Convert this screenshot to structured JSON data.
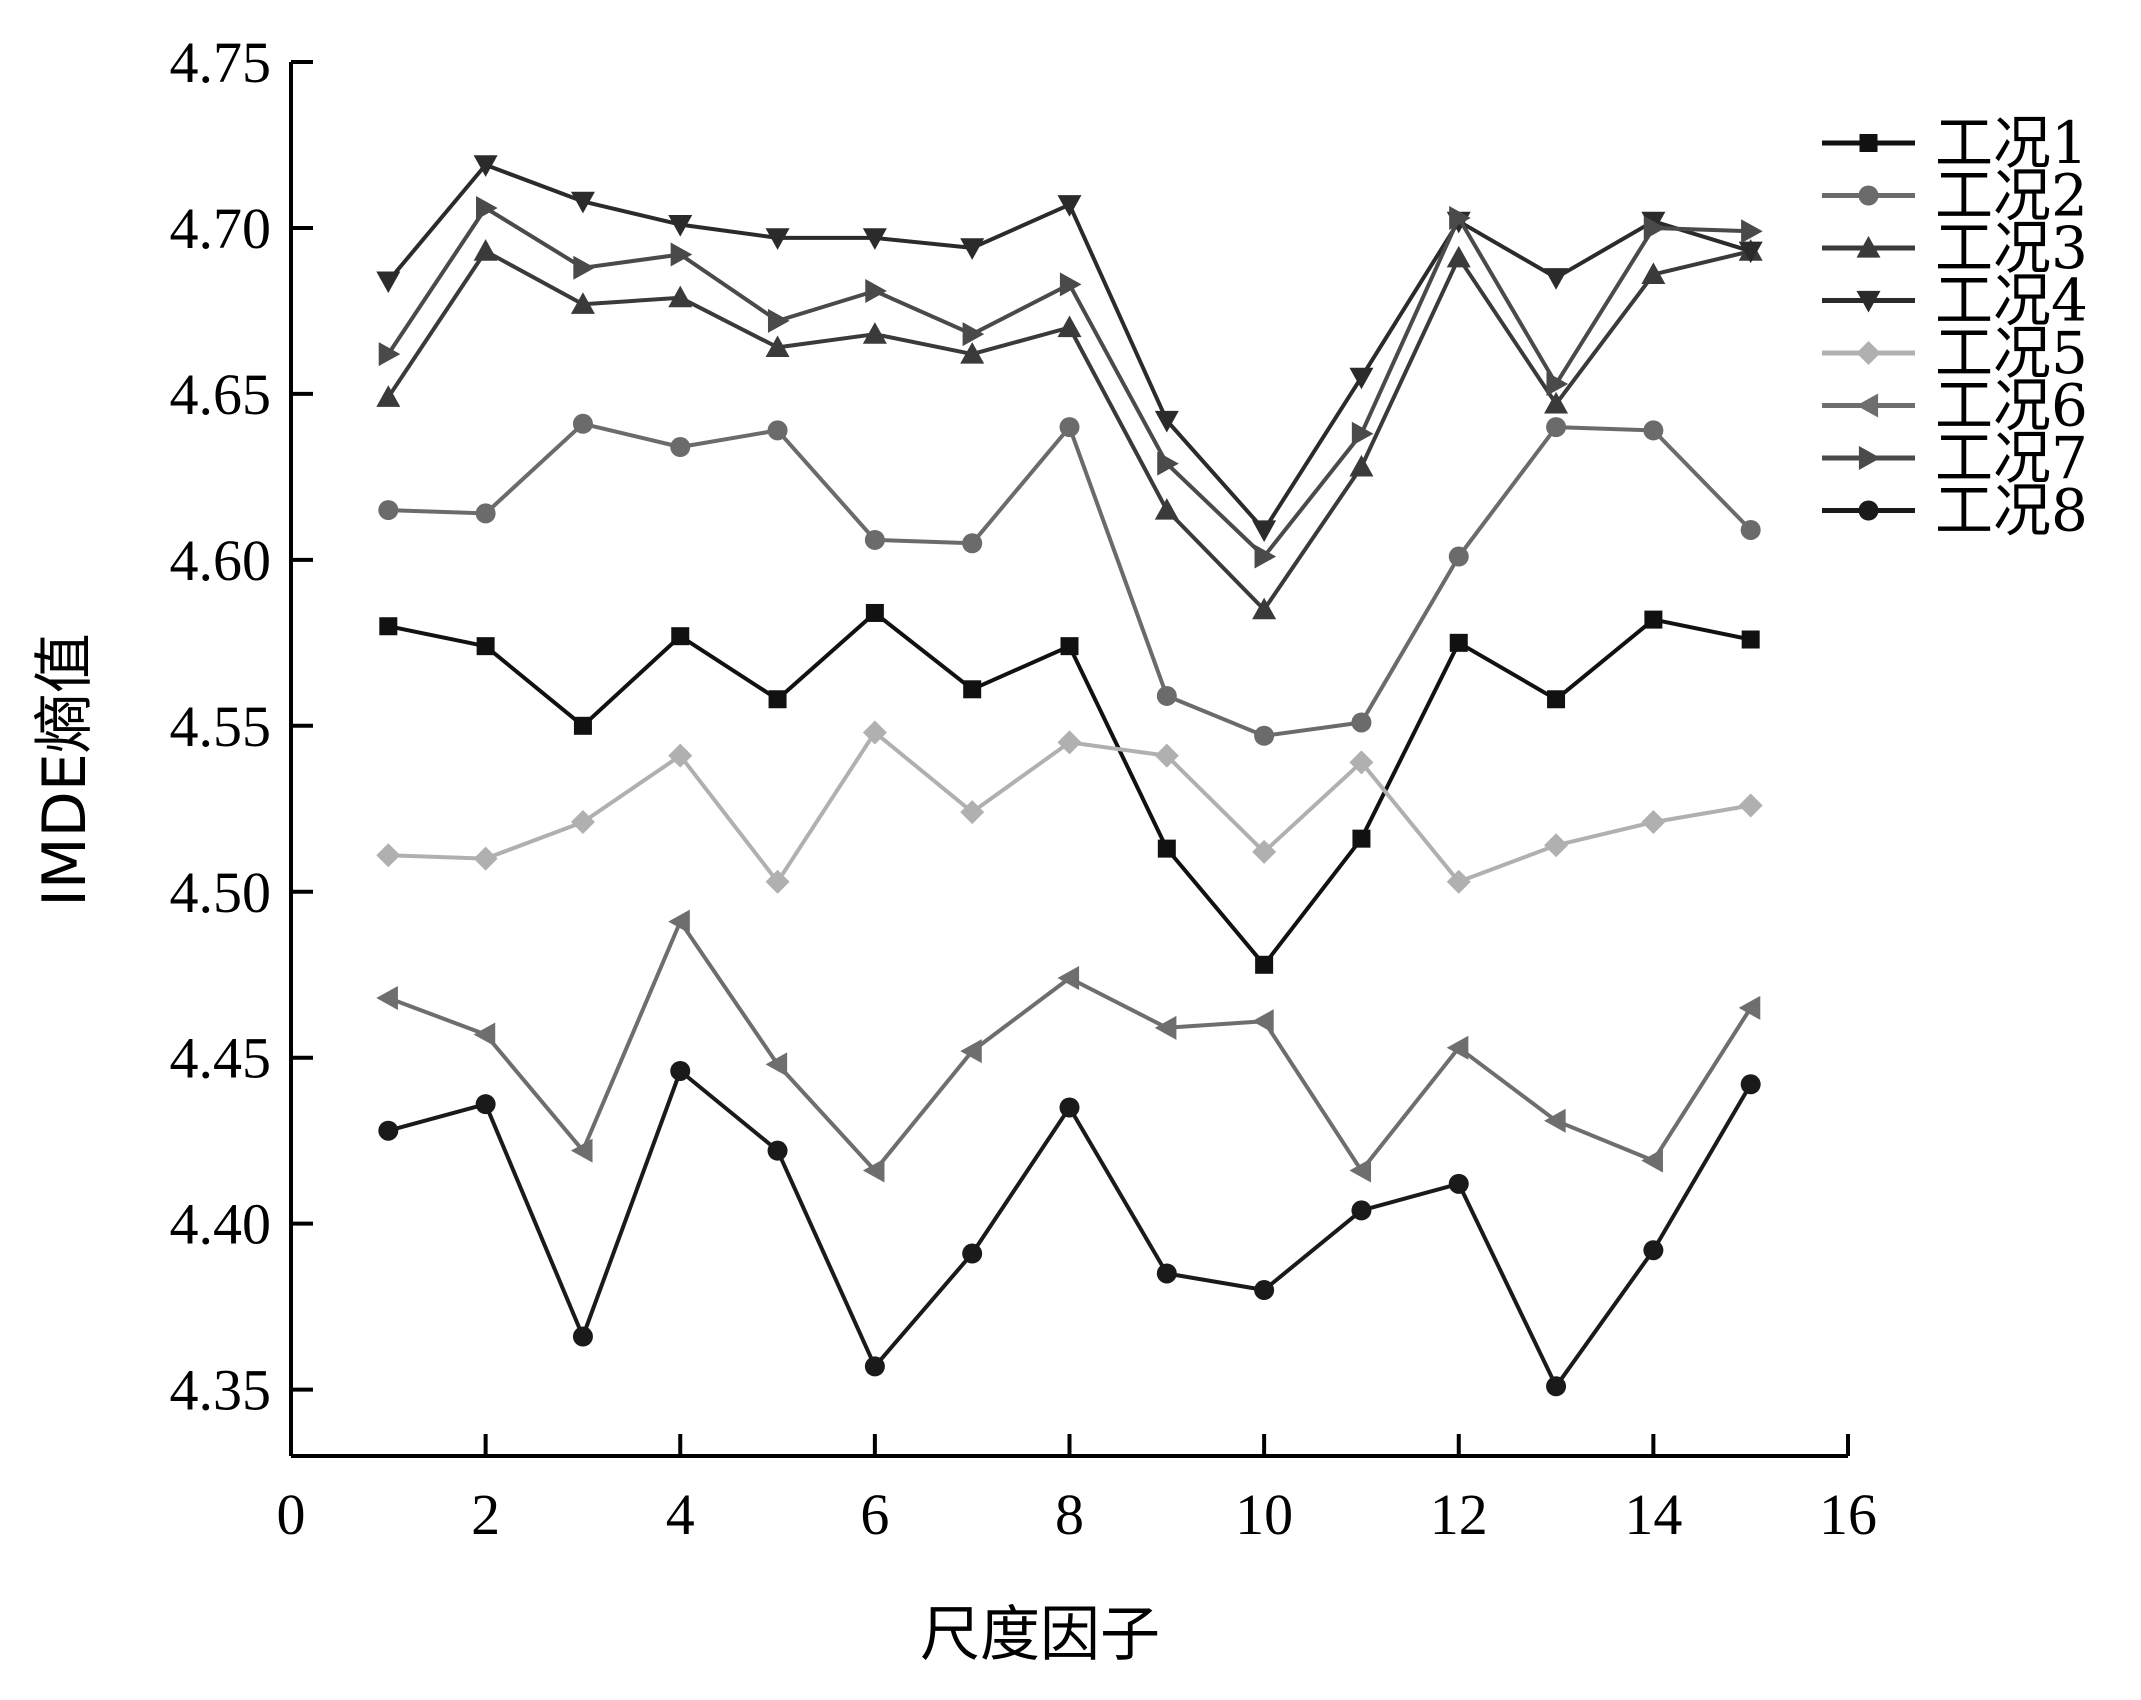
{
  "chart_data": {
    "type": "line",
    "title": "",
    "xlabel": "尺度因子",
    "ylabel": "IMDE熵值",
    "xlim": [
      0,
      16
    ],
    "ylim": [
      4.33,
      4.75
    ],
    "xticks": [
      0,
      2,
      4,
      6,
      8,
      10,
      12,
      14,
      16
    ],
    "yticks": [
      4.35,
      4.4,
      4.45,
      4.5,
      4.55,
      4.6,
      4.65,
      4.7,
      4.75
    ],
    "xtick_labels": [
      "0",
      "2",
      "4",
      "6",
      "8",
      "10",
      "12",
      "14",
      "16"
    ],
    "ytick_labels": [
      "4.35",
      "4.40",
      "4.45",
      "4.50",
      "4.55",
      "4.60",
      "4.65",
      "4.70",
      "4.75"
    ],
    "grid": false,
    "legend_position": "top-right",
    "x": [
      1,
      2,
      3,
      4,
      5,
      6,
      7,
      8,
      9,
      10,
      11,
      12,
      13,
      14,
      15
    ],
    "series": [
      {
        "name": "工况1",
        "marker": "square",
        "color": "#111111",
        "values": [
          4.58,
          4.574,
          4.55,
          4.577,
          4.558,
          4.584,
          4.561,
          4.574,
          4.513,
          4.478,
          4.516,
          4.575,
          4.558,
          4.582,
          4.576
        ]
      },
      {
        "name": "工况2",
        "marker": "circle",
        "color": "#6b6b6b",
        "values": [
          4.615,
          4.614,
          4.641,
          4.634,
          4.639,
          4.606,
          4.605,
          4.64,
          4.559,
          4.547,
          4.551,
          4.601,
          4.64,
          4.639,
          4.609
        ]
      },
      {
        "name": "工况3",
        "marker": "triangle-up",
        "color": "#3a3a3a",
        "values": [
          4.649,
          4.693,
          4.677,
          4.679,
          4.664,
          4.668,
          4.662,
          4.67,
          4.615,
          4.585,
          4.628,
          4.691,
          4.647,
          4.686,
          4.693
        ]
      },
      {
        "name": "工况4",
        "marker": "triangle-down",
        "color": "#2b2b2b",
        "values": [
          4.684,
          4.719,
          4.708,
          4.701,
          4.697,
          4.697,
          4.694,
          4.707,
          4.642,
          4.609,
          4.655,
          4.702,
          4.685,
          4.702,
          4.693
        ]
      },
      {
        "name": "工况5",
        "marker": "diamond",
        "color": "#b0b0b0",
        "values": [
          4.511,
          4.51,
          4.521,
          4.541,
          4.503,
          4.548,
          4.524,
          4.545,
          4.541,
          4.512,
          4.539,
          4.503,
          4.514,
          4.521,
          4.526
        ]
      },
      {
        "name": "工况6",
        "marker": "triangle-left",
        "color": "#6e6e6e",
        "values": [
          4.468,
          4.457,
          4.422,
          4.491,
          4.448,
          4.416,
          4.452,
          4.474,
          4.459,
          4.461,
          4.416,
          4.453,
          4.431,
          4.419,
          4.465
        ]
      },
      {
        "name": "工况7",
        "marker": "triangle-right",
        "color": "#4a4a4a",
        "values": [
          4.662,
          4.706,
          4.688,
          4.692,
          4.672,
          4.681,
          4.668,
          4.683,
          4.629,
          4.601,
          4.638,
          4.703,
          4.653,
          4.7,
          4.699
        ]
      },
      {
        "name": "工况8",
        "marker": "circle",
        "color": "#1a1a1a",
        "values": [
          4.428,
          4.436,
          4.366,
          4.446,
          4.422,
          4.357,
          4.391,
          4.435,
          4.385,
          4.38,
          4.404,
          4.412,
          4.351,
          4.392,
          4.442
        ]
      }
    ]
  }
}
